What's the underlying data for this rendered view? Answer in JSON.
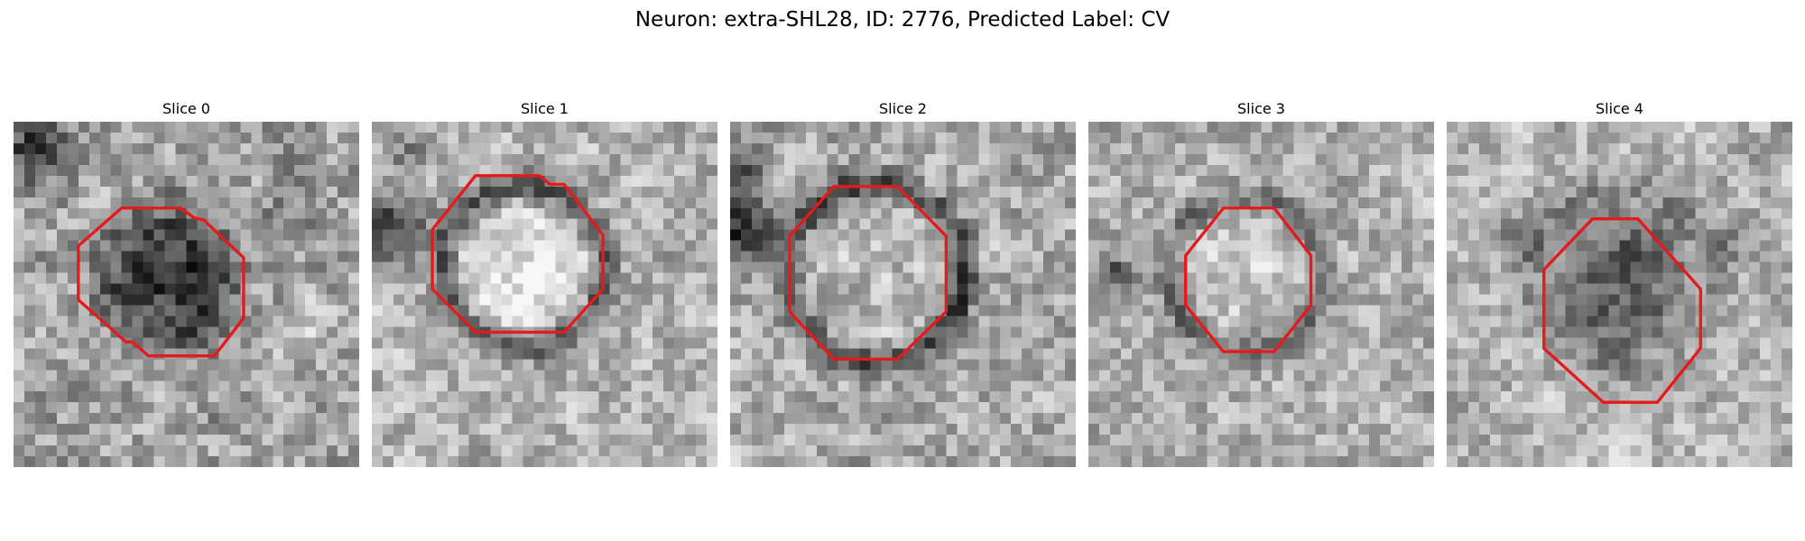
{
  "figure": {
    "title": "Neuron: extra-SHL28, ID: 2776, Predicted Label: CV"
  },
  "panels": [
    {
      "title": "Slice 0",
      "image_description": "grayscale EM slice with dark central blob inside red octagon contour"
    },
    {
      "title": "Slice 1",
      "image_description": "grayscale EM slice with bright round cell body ringed by darker membrane inside red octagon contour"
    },
    {
      "title": "Slice 2",
      "image_description": "grayscale EM slice with medium-gray round cell inside red octagon contour, dark region on left edge"
    },
    {
      "title": "Slice 3",
      "image_description": "grayscale EM slice with lighter round cell inside red octagon contour"
    },
    {
      "title": "Slice 4",
      "image_description": "grayscale EM slice with dark textured cell inside lower red octagon contour"
    }
  ],
  "colors": {
    "contour": "#e41a1c",
    "background": "#ffffff",
    "text": "#000000"
  }
}
